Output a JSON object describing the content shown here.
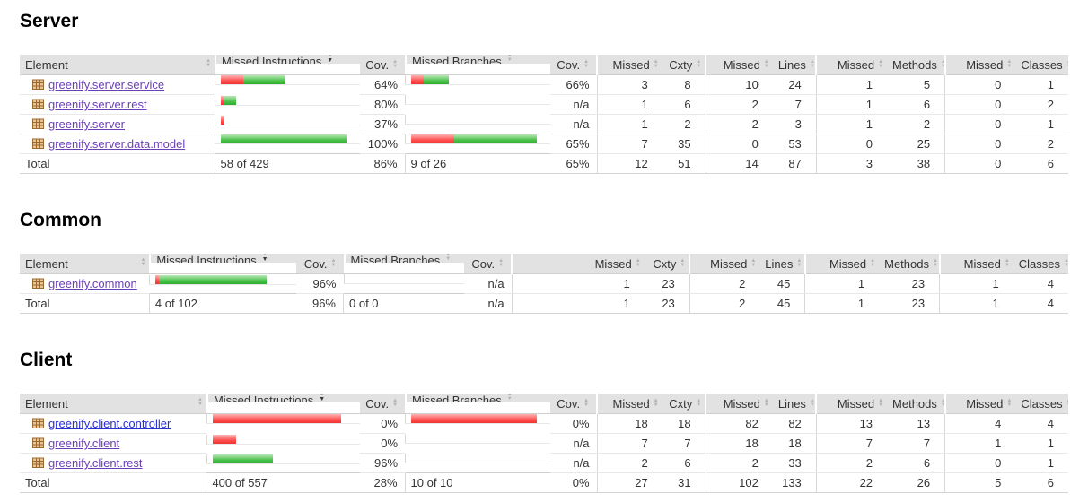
{
  "colors": {
    "bar_red": "#ff4f4f",
    "bar_green": "#4cc24c",
    "link_visited": "#6a3fb5",
    "link_unvisited": "#2a2fd4",
    "header_bg": "#e2e2e2"
  },
  "column_headers": [
    "Element",
    "Missed Instructions",
    "Cov.",
    "Missed Branches",
    "Cov.",
    "Missed",
    "Cxty",
    "Missed",
    "Lines",
    "Missed",
    "Methods",
    "Missed",
    "Classes"
  ],
  "sort": {
    "active_column": "Missed Instructions",
    "direction": "desc"
  },
  "sections": [
    {
      "title": "Server",
      "rows": [
        {
          "name": "greenify.server.service",
          "link_state": "visited",
          "instr_bar": {
            "red": 25,
            "green": 47
          },
          "instr_cov": "64%",
          "branch_bar": {
            "red": 14,
            "green": 28
          },
          "branch_cov": "66%",
          "values": [
            "3",
            "8",
            "10",
            "24",
            "1",
            "5",
            "0",
            "1"
          ]
        },
        {
          "name": "greenify.server.rest",
          "link_state": "visited",
          "instr_bar": {
            "red": 3,
            "green": 14
          },
          "instr_cov": "80%",
          "branch_bar": null,
          "branch_cov": "n/a",
          "values": [
            "1",
            "6",
            "2",
            "7",
            "1",
            "6",
            "0",
            "2"
          ]
        },
        {
          "name": "greenify.server",
          "link_state": "visited",
          "instr_bar": {
            "red": 3,
            "green": 1
          },
          "instr_cov": "37%",
          "branch_bar": null,
          "branch_cov": "n/a",
          "values": [
            "1",
            "2",
            "2",
            "3",
            "1",
            "2",
            "0",
            "1"
          ]
        },
        {
          "name": "greenify.server.data.model",
          "link_state": "visited",
          "instr_bar": {
            "red": 0,
            "green": 140
          },
          "instr_cov": "100%",
          "branch_bar": {
            "red": 48,
            "green": 92
          },
          "branch_cov": "65%",
          "values": [
            "7",
            "35",
            "0",
            "53",
            "0",
            "25",
            "0",
            "2"
          ]
        }
      ],
      "total": {
        "label": "Total",
        "instr": "58 of 429",
        "instr_cov": "86%",
        "branch": "9 of 26",
        "branch_cov": "65%",
        "values": [
          "12",
          "51",
          "14",
          "87",
          "3",
          "38",
          "0",
          "6"
        ]
      }
    },
    {
      "title": "Common",
      "rows": [
        {
          "name": "greenify.common",
          "link_state": "visited",
          "instr_bar": {
            "red": 4,
            "green": 120
          },
          "instr_cov": "96%",
          "branch_bar": null,
          "branch_cov": "n/a",
          "values": [
            "1",
            "23",
            "2",
            "45",
            "1",
            "23",
            "1",
            "4"
          ]
        }
      ],
      "total": {
        "label": "Total",
        "instr": "4 of 102",
        "instr_cov": "96%",
        "branch": "0 of 0",
        "branch_cov": "n/a",
        "values": [
          "1",
          "23",
          "2",
          "45",
          "1",
          "23",
          "1",
          "4"
        ]
      }
    },
    {
      "title": "Client",
      "rows": [
        {
          "name": "greenify.client.controller",
          "link_state": "new",
          "instr_bar": {
            "red": 143,
            "green": 0
          },
          "instr_cov": "0%",
          "branch_bar": {
            "red": 140,
            "green": 0
          },
          "branch_cov": "0%",
          "values": [
            "18",
            "18",
            "82",
            "82",
            "13",
            "13",
            "4",
            "4"
          ]
        },
        {
          "name": "greenify.client",
          "link_state": "visited",
          "instr_bar": {
            "red": 26,
            "green": 0
          },
          "instr_cov": "0%",
          "branch_bar": null,
          "branch_cov": "n/a",
          "values": [
            "7",
            "7",
            "18",
            "18",
            "7",
            "7",
            "1",
            "1"
          ]
        },
        {
          "name": "greenify.client.rest",
          "link_state": "visited",
          "instr_bar": {
            "red": 0,
            "green": 67
          },
          "instr_cov": "96%",
          "branch_bar": null,
          "branch_cov": "n/a",
          "values": [
            "2",
            "6",
            "2",
            "33",
            "2",
            "6",
            "0",
            "1"
          ]
        }
      ],
      "total": {
        "label": "Total",
        "instr": "400 of 557",
        "instr_cov": "28%",
        "branch": "10 of 10",
        "branch_cov": "0%",
        "values": [
          "27",
          "31",
          "102",
          "133",
          "22",
          "26",
          "5",
          "6"
        ]
      }
    }
  ]
}
